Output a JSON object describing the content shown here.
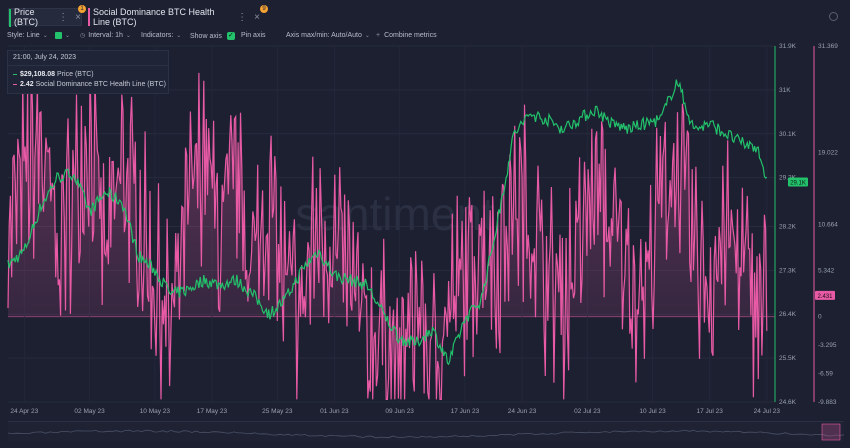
{
  "tabs": [
    {
      "label": "Price (BTC)",
      "color": "#23c16b",
      "badge": "1"
    },
    {
      "label": "Social Dominance BTC Health Line (BTC)",
      "color": "#e85aa5",
      "badge": "9"
    }
  ],
  "toolbar": {
    "style_label": "Style: Line",
    "interval_label": "Interval: 1h",
    "indicators_label": "Indicators:",
    "show_axis_label": "Show axis",
    "pin_axis_label": "Pin axis",
    "axis_max_min_label": "Axis max/min: Auto/Auto",
    "combine_metrics_label": "Combine metrics"
  },
  "tooltip": {
    "date": "21:00, July 24, 2023",
    "rows": [
      {
        "value": "$29,108.08",
        "label": "Price (BTC)",
        "color": "#23c16b"
      },
      {
        "value": "2.42",
        "label": "Social Dominance BTC Health Line (BTC)",
        "color": "#e85aa5"
      }
    ]
  },
  "watermark": "santiment",
  "chart_data": {
    "type": "line",
    "x_ticks": [
      "24 Apr 23",
      "02 May 23",
      "10 May 23",
      "17 May 23",
      "25 May 23",
      "01 Jun 23",
      "09 Jun 23",
      "17 Jun 23",
      "24 Jun 23",
      "02 Jul 23",
      "10 Jul 23",
      "17 Jul 23",
      "24 Jul 23"
    ],
    "x_range": [
      "2023-04-22",
      "2023-07-25"
    ],
    "y_price_ticks": [
      "31.9K",
      "31K",
      "30.1K",
      "29.2K",
      "28.2K",
      "27.3K",
      "26.4K",
      "25.5K",
      "24.6K"
    ],
    "y_price_range": [
      24600,
      31900
    ],
    "y_social_ticks": [
      "31.369",
      "19.022",
      "10.664",
      "5.342",
      "0",
      "-3.295",
      "-6.59",
      "-9.883"
    ],
    "y_social_range": [
      -9.883,
      31.369
    ],
    "current_price_label": "29.1K",
    "current_social_label": "2.431",
    "series": [
      {
        "name": "Price (BTC)",
        "color": "#23c16b",
        "x": [
          "2023-04-22",
          "2023-04-24",
          "2023-04-26",
          "2023-04-28",
          "2023-04-30",
          "2023-05-02",
          "2023-05-04",
          "2023-05-06",
          "2023-05-08",
          "2023-05-10",
          "2023-05-12",
          "2023-05-14",
          "2023-05-16",
          "2023-05-18",
          "2023-05-20",
          "2023-05-22",
          "2023-05-24",
          "2023-05-26",
          "2023-05-28",
          "2023-05-30",
          "2023-06-01",
          "2023-06-03",
          "2023-06-05",
          "2023-06-07",
          "2023-06-09",
          "2023-06-11",
          "2023-06-13",
          "2023-06-15",
          "2023-06-17",
          "2023-06-19",
          "2023-06-21",
          "2023-06-23",
          "2023-06-25",
          "2023-06-27",
          "2023-06-29",
          "2023-07-01",
          "2023-07-03",
          "2023-07-05",
          "2023-07-07",
          "2023-07-09",
          "2023-07-11",
          "2023-07-13",
          "2023-07-15",
          "2023-07-17",
          "2023-07-19",
          "2023-07-21",
          "2023-07-23",
          "2023-07-24"
        ],
        "values": [
          27400,
          27700,
          28600,
          29200,
          29300,
          28500,
          28900,
          28700,
          27600,
          27300,
          26800,
          26900,
          27100,
          27000,
          27100,
          26800,
          26400,
          26700,
          27300,
          27700,
          27200,
          27100,
          27000,
          26400,
          25900,
          25800,
          26100,
          25400,
          26300,
          26700,
          28300,
          30100,
          30500,
          30400,
          30200,
          30400,
          30600,
          30300,
          30200,
          30300,
          30400,
          31200,
          30200,
          30300,
          30100,
          29900,
          29800,
          29100
        ]
      },
      {
        "name": "Social Dominance BTC Health Line (BTC)",
        "color": "#e85aa5",
        "x": [
          "2023-04-22",
          "2023-04-24",
          "2023-04-26",
          "2023-04-28",
          "2023-04-30",
          "2023-05-02",
          "2023-05-04",
          "2023-05-06",
          "2023-05-08",
          "2023-05-10",
          "2023-05-12",
          "2023-05-14",
          "2023-05-16",
          "2023-05-18",
          "2023-05-20",
          "2023-05-22",
          "2023-05-24",
          "2023-05-26",
          "2023-05-28",
          "2023-05-30",
          "2023-06-01",
          "2023-06-03",
          "2023-06-05",
          "2023-06-07",
          "2023-06-09",
          "2023-06-11",
          "2023-06-13",
          "2023-06-15",
          "2023-06-17",
          "2023-06-19",
          "2023-06-21",
          "2023-06-23",
          "2023-06-25",
          "2023-06-27",
          "2023-06-29",
          "2023-07-01",
          "2023-07-03",
          "2023-07-05",
          "2023-07-07",
          "2023-07-09",
          "2023-07-11",
          "2023-07-13",
          "2023-07-15",
          "2023-07-17",
          "2023-07-19",
          "2023-07-21",
          "2023-07-23",
          "2023-07-24"
        ],
        "values": [
          10,
          16,
          20,
          8,
          14,
          22,
          6,
          18,
          12,
          4,
          -2,
          12,
          20,
          9,
          16,
          6,
          14,
          3,
          1,
          11,
          8,
          4,
          -3,
          -1,
          -8,
          2,
          -6,
          1,
          4,
          10,
          6,
          14,
          12,
          5,
          2,
          8,
          16,
          10,
          6,
          3,
          14,
          18,
          8,
          4,
          10,
          6,
          2,
          2.42
        ]
      }
    ]
  }
}
